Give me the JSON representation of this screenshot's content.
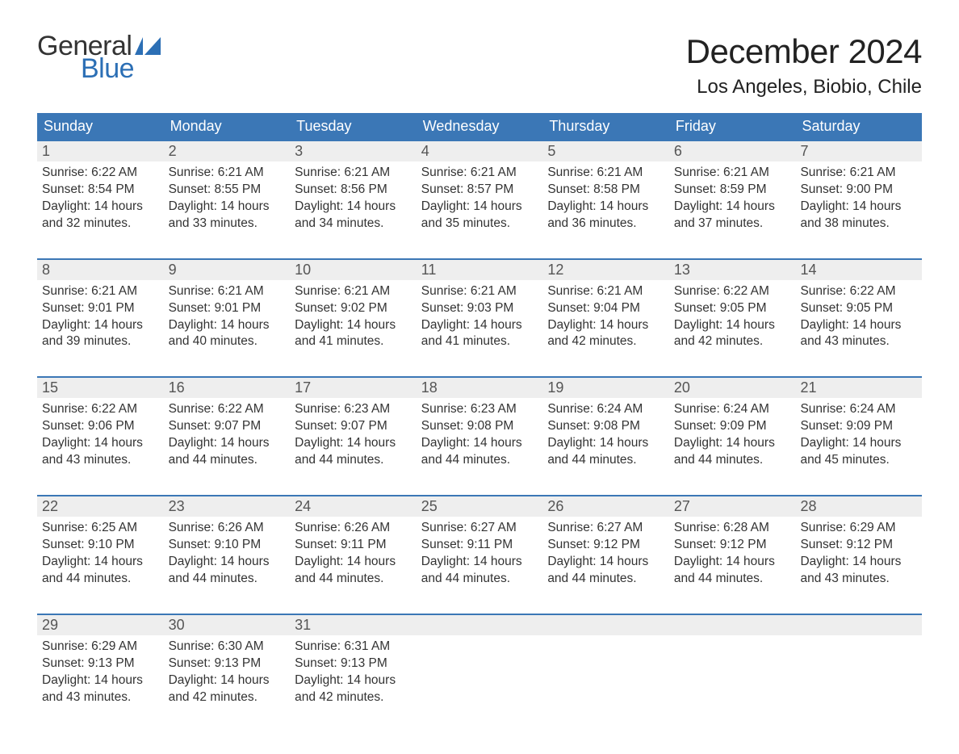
{
  "logo": {
    "text_general": "General",
    "text_blue": "Blue",
    "flag_color": "#2c6fb5",
    "text_color_dark": "#333333"
  },
  "header": {
    "title": "December 2024",
    "subtitle": "Los Angeles, Biobio, Chile"
  },
  "colors": {
    "header_bg": "#3b77b6",
    "header_text": "#ffffff",
    "week_border": "#3b77b6",
    "daynum_bg": "#eeeeee",
    "daynum_text": "#555555",
    "body_text": "#333333",
    "page_bg": "#ffffff"
  },
  "typography": {
    "title_fontsize": 42,
    "subtitle_fontsize": 24,
    "dayheader_fontsize": 18,
    "daynum_fontsize": 18,
    "body_fontsize": 15.5,
    "font_family": "Arial"
  },
  "day_names": [
    "Sunday",
    "Monday",
    "Tuesday",
    "Wednesday",
    "Thursday",
    "Friday",
    "Saturday"
  ],
  "weeks": [
    [
      {
        "num": "1",
        "sunrise": "Sunrise: 6:22 AM",
        "sunset": "Sunset: 8:54 PM",
        "dl1": "Daylight: 14 hours",
        "dl2": "and 32 minutes."
      },
      {
        "num": "2",
        "sunrise": "Sunrise: 6:21 AM",
        "sunset": "Sunset: 8:55 PM",
        "dl1": "Daylight: 14 hours",
        "dl2": "and 33 minutes."
      },
      {
        "num": "3",
        "sunrise": "Sunrise: 6:21 AM",
        "sunset": "Sunset: 8:56 PM",
        "dl1": "Daylight: 14 hours",
        "dl2": "and 34 minutes."
      },
      {
        "num": "4",
        "sunrise": "Sunrise: 6:21 AM",
        "sunset": "Sunset: 8:57 PM",
        "dl1": "Daylight: 14 hours",
        "dl2": "and 35 minutes."
      },
      {
        "num": "5",
        "sunrise": "Sunrise: 6:21 AM",
        "sunset": "Sunset: 8:58 PM",
        "dl1": "Daylight: 14 hours",
        "dl2": "and 36 minutes."
      },
      {
        "num": "6",
        "sunrise": "Sunrise: 6:21 AM",
        "sunset": "Sunset: 8:59 PM",
        "dl1": "Daylight: 14 hours",
        "dl2": "and 37 minutes."
      },
      {
        "num": "7",
        "sunrise": "Sunrise: 6:21 AM",
        "sunset": "Sunset: 9:00 PM",
        "dl1": "Daylight: 14 hours",
        "dl2": "and 38 minutes."
      }
    ],
    [
      {
        "num": "8",
        "sunrise": "Sunrise: 6:21 AM",
        "sunset": "Sunset: 9:01 PM",
        "dl1": "Daylight: 14 hours",
        "dl2": "and 39 minutes."
      },
      {
        "num": "9",
        "sunrise": "Sunrise: 6:21 AM",
        "sunset": "Sunset: 9:01 PM",
        "dl1": "Daylight: 14 hours",
        "dl2": "and 40 minutes."
      },
      {
        "num": "10",
        "sunrise": "Sunrise: 6:21 AM",
        "sunset": "Sunset: 9:02 PM",
        "dl1": "Daylight: 14 hours",
        "dl2": "and 41 minutes."
      },
      {
        "num": "11",
        "sunrise": "Sunrise: 6:21 AM",
        "sunset": "Sunset: 9:03 PM",
        "dl1": "Daylight: 14 hours",
        "dl2": "and 41 minutes."
      },
      {
        "num": "12",
        "sunrise": "Sunrise: 6:21 AM",
        "sunset": "Sunset: 9:04 PM",
        "dl1": "Daylight: 14 hours",
        "dl2": "and 42 minutes."
      },
      {
        "num": "13",
        "sunrise": "Sunrise: 6:22 AM",
        "sunset": "Sunset: 9:05 PM",
        "dl1": "Daylight: 14 hours",
        "dl2": "and 42 minutes."
      },
      {
        "num": "14",
        "sunrise": "Sunrise: 6:22 AM",
        "sunset": "Sunset: 9:05 PM",
        "dl1": "Daylight: 14 hours",
        "dl2": "and 43 minutes."
      }
    ],
    [
      {
        "num": "15",
        "sunrise": "Sunrise: 6:22 AM",
        "sunset": "Sunset: 9:06 PM",
        "dl1": "Daylight: 14 hours",
        "dl2": "and 43 minutes."
      },
      {
        "num": "16",
        "sunrise": "Sunrise: 6:22 AM",
        "sunset": "Sunset: 9:07 PM",
        "dl1": "Daylight: 14 hours",
        "dl2": "and 44 minutes."
      },
      {
        "num": "17",
        "sunrise": "Sunrise: 6:23 AM",
        "sunset": "Sunset: 9:07 PM",
        "dl1": "Daylight: 14 hours",
        "dl2": "and 44 minutes."
      },
      {
        "num": "18",
        "sunrise": "Sunrise: 6:23 AM",
        "sunset": "Sunset: 9:08 PM",
        "dl1": "Daylight: 14 hours",
        "dl2": "and 44 minutes."
      },
      {
        "num": "19",
        "sunrise": "Sunrise: 6:24 AM",
        "sunset": "Sunset: 9:08 PM",
        "dl1": "Daylight: 14 hours",
        "dl2": "and 44 minutes."
      },
      {
        "num": "20",
        "sunrise": "Sunrise: 6:24 AM",
        "sunset": "Sunset: 9:09 PM",
        "dl1": "Daylight: 14 hours",
        "dl2": "and 44 minutes."
      },
      {
        "num": "21",
        "sunrise": "Sunrise: 6:24 AM",
        "sunset": "Sunset: 9:09 PM",
        "dl1": "Daylight: 14 hours",
        "dl2": "and 45 minutes."
      }
    ],
    [
      {
        "num": "22",
        "sunrise": "Sunrise: 6:25 AM",
        "sunset": "Sunset: 9:10 PM",
        "dl1": "Daylight: 14 hours",
        "dl2": "and 44 minutes."
      },
      {
        "num": "23",
        "sunrise": "Sunrise: 6:26 AM",
        "sunset": "Sunset: 9:10 PM",
        "dl1": "Daylight: 14 hours",
        "dl2": "and 44 minutes."
      },
      {
        "num": "24",
        "sunrise": "Sunrise: 6:26 AM",
        "sunset": "Sunset: 9:11 PM",
        "dl1": "Daylight: 14 hours",
        "dl2": "and 44 minutes."
      },
      {
        "num": "25",
        "sunrise": "Sunrise: 6:27 AM",
        "sunset": "Sunset: 9:11 PM",
        "dl1": "Daylight: 14 hours",
        "dl2": "and 44 minutes."
      },
      {
        "num": "26",
        "sunrise": "Sunrise: 6:27 AM",
        "sunset": "Sunset: 9:12 PM",
        "dl1": "Daylight: 14 hours",
        "dl2": "and 44 minutes."
      },
      {
        "num": "27",
        "sunrise": "Sunrise: 6:28 AM",
        "sunset": "Sunset: 9:12 PM",
        "dl1": "Daylight: 14 hours",
        "dl2": "and 44 minutes."
      },
      {
        "num": "28",
        "sunrise": "Sunrise: 6:29 AM",
        "sunset": "Sunset: 9:12 PM",
        "dl1": "Daylight: 14 hours",
        "dl2": "and 43 minutes."
      }
    ],
    [
      {
        "num": "29",
        "sunrise": "Sunrise: 6:29 AM",
        "sunset": "Sunset: 9:13 PM",
        "dl1": "Daylight: 14 hours",
        "dl2": "and 43 minutes."
      },
      {
        "num": "30",
        "sunrise": "Sunrise: 6:30 AM",
        "sunset": "Sunset: 9:13 PM",
        "dl1": "Daylight: 14 hours",
        "dl2": "and 42 minutes."
      },
      {
        "num": "31",
        "sunrise": "Sunrise: 6:31 AM",
        "sunset": "Sunset: 9:13 PM",
        "dl1": "Daylight: 14 hours",
        "dl2": "and 42 minutes."
      },
      {
        "empty": true
      },
      {
        "empty": true
      },
      {
        "empty": true
      },
      {
        "empty": true
      }
    ]
  ]
}
